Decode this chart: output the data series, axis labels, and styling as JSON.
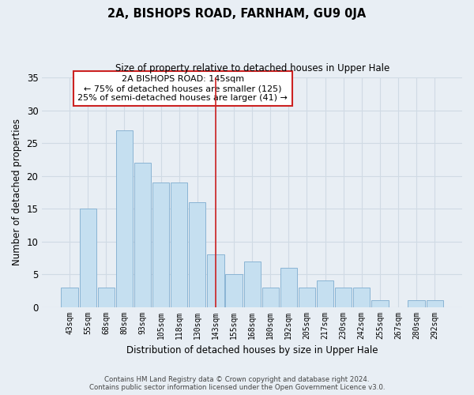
{
  "title": "2A, BISHOPS ROAD, FARNHAM, GU9 0JA",
  "subtitle": "Size of property relative to detached houses in Upper Hale",
  "xlabel": "Distribution of detached houses by size in Upper Hale",
  "ylabel": "Number of detached properties",
  "bar_labels": [
    "43sqm",
    "55sqm",
    "68sqm",
    "80sqm",
    "93sqm",
    "105sqm",
    "118sqm",
    "130sqm",
    "143sqm",
    "155sqm",
    "168sqm",
    "180sqm",
    "192sqm",
    "205sqm",
    "217sqm",
    "230sqm",
    "242sqm",
    "255sqm",
    "267sqm",
    "280sqm",
    "292sqm"
  ],
  "bar_values": [
    3,
    15,
    3,
    27,
    22,
    19,
    19,
    16,
    8,
    5,
    7,
    3,
    6,
    3,
    4,
    3,
    3,
    1,
    0,
    1,
    1
  ],
  "bar_color": "#c5dff0",
  "bar_edge_color": "#8ab4d4",
  "background_color": "#e8eef4",
  "grid_color": "#d0dae4",
  "ylim": [
    0,
    35
  ],
  "yticks": [
    0,
    5,
    10,
    15,
    20,
    25,
    30,
    35
  ],
  "annotation_title": "2A BISHOPS ROAD: 145sqm",
  "annotation_line1": "← 75% of detached houses are smaller (125)",
  "annotation_line2": "25% of semi-detached houses are larger (41) →",
  "annotation_box_color": "#ffffff",
  "annotation_border_color": "#cc2222",
  "vline_x_label": "143sqm",
  "vline_color": "#cc2222",
  "footer_line1": "Contains HM Land Registry data © Crown copyright and database right 2024.",
  "footer_line2": "Contains public sector information licensed under the Open Government Licence v3.0."
}
